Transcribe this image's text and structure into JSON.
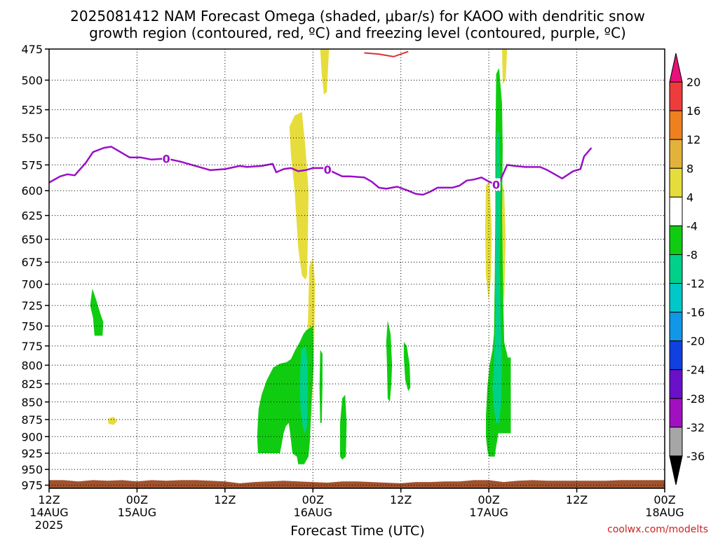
{
  "title_line1": "2025081412 NAM Forecast Omega (shaded, μbar/s) for KAOO with dendritic snow",
  "title_line2": "growth region (contoured, red, ºC) and freezing level (contoured, purple, ºC)",
  "credit": "coolwx.com/modelts",
  "chart_data": {
    "type": "heatmap",
    "xlabel": "Forecast Time (UTC)",
    "ylabel": "",
    "x_ticks": [
      {
        "hour": 0,
        "line1": "12Z",
        "line2": "14AUG",
        "line3": "2025"
      },
      {
        "hour": 12,
        "line1": "00Z",
        "line2": "15AUG",
        "line3": ""
      },
      {
        "hour": 24,
        "line1": "12Z",
        "line2": "",
        "line3": ""
      },
      {
        "hour": 36,
        "line1": "00Z",
        "line2": "16AUG",
        "line3": ""
      },
      {
        "hour": 48,
        "line1": "12Z",
        "line2": "",
        "line3": ""
      },
      {
        "hour": 60,
        "line1": "00Z",
        "line2": "17AUG",
        "line3": ""
      },
      {
        "hour": 72,
        "line1": "12Z",
        "line2": "",
        "line3": ""
      },
      {
        "hour": 84,
        "line1": "00Z",
        "line2": "18AUG",
        "line3": ""
      }
    ],
    "xlim": [
      0,
      84
    ],
    "y_ticks": [
      475,
      500,
      525,
      550,
      575,
      600,
      625,
      650,
      675,
      700,
      725,
      750,
      775,
      800,
      825,
      850,
      875,
      900,
      925,
      950,
      975
    ],
    "ylim": [
      475,
      980
    ],
    "y_scale": "log-pressure",
    "grid": true,
    "colorbar": {
      "levels": [
        "20",
        "16",
        "12",
        "8",
        "4",
        "-4",
        "-8",
        "-12",
        "-16",
        "-20",
        "-24",
        "-28",
        "-32",
        "-36"
      ],
      "colors": [
        "#e8107a",
        "#ee3b3b",
        "#ee8020",
        "#e3b23a",
        "#e6dd3c",
        "#ffffff",
        "#10cc10",
        "#00d08a",
        "#00c8c8",
        "#1097e8",
        "#1040e0",
        "#6a10c8",
        "#a010c0",
        "#a6a6a6",
        "#000000"
      ]
    },
    "freezing_level": {
      "label": "0",
      "color": "#9a10c8",
      "points": [
        [
          0,
          592
        ],
        [
          1.5,
          586
        ],
        [
          2.5,
          584
        ],
        [
          3.5,
          585
        ],
        [
          5,
          573
        ],
        [
          6,
          563
        ],
        [
          7.5,
          559
        ],
        [
          8.5,
          558
        ],
        [
          9.5,
          562
        ],
        [
          11,
          568
        ],
        [
          12.5,
          568
        ],
        [
          14,
          570
        ],
        [
          16,
          569
        ],
        [
          18,
          572
        ],
        [
          20,
          576
        ],
        [
          22,
          580
        ],
        [
          24,
          579
        ],
        [
          26,
          576
        ],
        [
          27,
          577
        ],
        [
          29,
          576
        ],
        [
          30.5,
          574
        ],
        [
          31,
          582
        ],
        [
          32,
          579
        ],
        [
          33,
          578
        ],
        [
          34,
          581
        ],
        [
          35,
          580
        ],
        [
          36,
          578
        ],
        [
          37.5,
          578
        ],
        [
          38.5,
          581
        ],
        [
          40,
          586
        ],
        [
          41,
          586
        ],
        [
          43,
          587
        ],
        [
          44,
          591
        ],
        [
          45,
          597
        ],
        [
          46,
          598
        ],
        [
          47.5,
          596
        ],
        [
          49,
          600
        ],
        [
          50,
          603
        ],
        [
          51,
          604
        ],
        [
          52,
          601
        ],
        [
          53,
          597
        ],
        [
          54,
          597
        ],
        [
          55,
          597
        ],
        [
          56,
          595
        ],
        [
          57,
          590
        ],
        [
          58,
          589
        ],
        [
          59,
          587
        ],
        [
          60,
          591
        ],
        [
          61,
          594
        ],
        [
          61.5,
          591
        ],
        [
          62.5,
          575
        ],
        [
          63.5,
          576
        ],
        [
          65,
          577
        ],
        [
          66,
          577
        ],
        [
          67,
          577
        ],
        [
          68,
          580
        ],
        [
          69,
          584
        ],
        [
          70,
          588
        ],
        [
          71.5,
          581
        ],
        [
          72.5,
          579
        ],
        [
          73,
          567
        ],
        [
          74,
          559
        ]
      ],
      "label_hours": [
        16,
        38,
        61
      ]
    },
    "dgz_contour": {
      "color": "#e03030",
      "points": [
        [
          43,
          478
        ],
        [
          45,
          479
        ],
        [
          47,
          481
        ],
        [
          49,
          477
        ]
      ]
    },
    "omega_regions": [
      {
        "value": 6,
        "color": "#e6dd3c",
        "points": [
          [
            37.0,
            475
          ],
          [
            38.2,
            475
          ],
          [
            37.9,
            510
          ],
          [
            37.5,
            512
          ],
          [
            37.2,
            495
          ]
        ]
      },
      {
        "value": 6,
        "color": "#e6dd3c",
        "points": [
          [
            33.5,
            530
          ],
          [
            34.5,
            527
          ],
          [
            35.0,
            560
          ],
          [
            35.4,
            600
          ],
          [
            35.3,
            650
          ],
          [
            35.2,
            690
          ],
          [
            35.0,
            695
          ],
          [
            34.5,
            690
          ],
          [
            34.0,
            660
          ],
          [
            33.5,
            600
          ],
          [
            33.0,
            565
          ],
          [
            32.8,
            540
          ]
        ]
      },
      {
        "value": 6,
        "color": "#e6dd3c",
        "points": [
          [
            35.5,
            680
          ],
          [
            36.0,
            670
          ],
          [
            36.3,
            700
          ],
          [
            36.2,
            760
          ],
          [
            36.0,
            820
          ],
          [
            35.8,
            870
          ],
          [
            35.5,
            870
          ],
          [
            35.4,
            820
          ],
          [
            35.3,
            750
          ]
        ]
      },
      {
        "value": 6,
        "color": "#e6dd3c",
        "points": [
          [
            61.8,
            475
          ],
          [
            62.5,
            475
          ],
          [
            62.3,
            500
          ],
          [
            61.9,
            503
          ]
        ]
      },
      {
        "value": 6,
        "color": "#e6dd3c",
        "points": [
          [
            59.6,
            595
          ],
          [
            60.1,
            590
          ],
          [
            60.4,
            640
          ],
          [
            60.3,
            690
          ],
          [
            60.0,
            720
          ],
          [
            59.6,
            690
          ],
          [
            59.5,
            640
          ]
        ]
      },
      {
        "value": 6,
        "color": "#e6dd3c",
        "points": [
          [
            61.7,
            590
          ],
          [
            62.1,
            600
          ],
          [
            62.3,
            650
          ],
          [
            62.1,
            720
          ],
          [
            61.8,
            700
          ],
          [
            61.6,
            650
          ]
        ]
      },
      {
        "value": 6,
        "color": "#e6dd3c",
        "points": [
          [
            8.0,
            874
          ],
          [
            8.8,
            871
          ],
          [
            9.3,
            877
          ],
          [
            8.8,
            883
          ],
          [
            8.1,
            881
          ]
        ]
      },
      {
        "value": -6,
        "color": "#10cc10",
        "points": [
          [
            5.9,
            705
          ],
          [
            6.5,
            720
          ],
          [
            7.0,
            735
          ],
          [
            7.4,
            745
          ],
          [
            7.3,
            762
          ],
          [
            6.2,
            762
          ],
          [
            6.0,
            740
          ],
          [
            5.6,
            725
          ]
        ]
      },
      {
        "value": -6,
        "color": "#10cc10",
        "points": [
          [
            35.1,
            755
          ],
          [
            36.0,
            750
          ],
          [
            36.1,
            800
          ],
          [
            35.8,
            850
          ],
          [
            35.6,
            905
          ],
          [
            35.4,
            930
          ],
          [
            34.8,
            942
          ],
          [
            34.0,
            942
          ],
          [
            33.8,
            930
          ],
          [
            33.2,
            925
          ],
          [
            32.9,
            895
          ],
          [
            32.7,
            880
          ],
          [
            32.3,
            885
          ],
          [
            32.0,
            895
          ],
          [
            31.5,
            925
          ],
          [
            30.0,
            925
          ],
          [
            28.5,
            925
          ],
          [
            28.4,
            900
          ],
          [
            28.5,
            875
          ],
          [
            28.6,
            860
          ],
          [
            29.0,
            840
          ],
          [
            29.7,
            820
          ],
          [
            30.6,
            803
          ],
          [
            31.5,
            798
          ],
          [
            32.4,
            796
          ],
          [
            33.0,
            792
          ],
          [
            33.6,
            780
          ],
          [
            34.2,
            770
          ],
          [
            34.7,
            760
          ]
        ]
      },
      {
        "value": -6,
        "color": "#10cc10",
        "points": [
          [
            37.0,
            780
          ],
          [
            37.3,
            785
          ],
          [
            37.3,
            830
          ],
          [
            37.2,
            880
          ],
          [
            37.0,
            880
          ],
          [
            36.9,
            830
          ]
        ]
      },
      {
        "value": -6,
        "color": "#10cc10",
        "points": [
          [
            40.0,
            845
          ],
          [
            40.4,
            840
          ],
          [
            40.6,
            880
          ],
          [
            40.5,
            930
          ],
          [
            40.0,
            935
          ],
          [
            39.7,
            930
          ],
          [
            39.7,
            880
          ]
        ]
      },
      {
        "value": -6,
        "color": "#10cc10",
        "points": [
          [
            46.2,
            743
          ],
          [
            46.6,
            760
          ],
          [
            46.8,
            800
          ],
          [
            46.7,
            825
          ],
          [
            46.5,
            850
          ],
          [
            46.2,
            845
          ],
          [
            46.1,
            800
          ],
          [
            46.0,
            770
          ]
        ]
      },
      {
        "value": -6,
        "color": "#10cc10",
        "points": [
          [
            48.4,
            770
          ],
          [
            48.8,
            775
          ],
          [
            49.2,
            800
          ],
          [
            49.3,
            830
          ],
          [
            49.0,
            835
          ],
          [
            48.6,
            820
          ],
          [
            48.4,
            790
          ]
        ]
      },
      {
        "value": -6,
        "color": "#10cc10",
        "points": [
          [
            61.0,
            495
          ],
          [
            61.4,
            490
          ],
          [
            61.8,
            520
          ],
          [
            61.9,
            560
          ],
          [
            61.8,
            620
          ],
          [
            61.9,
            680
          ],
          [
            62.0,
            730
          ],
          [
            62.1,
            770
          ],
          [
            62.6,
            790
          ],
          [
            63.0,
            790
          ],
          [
            63.0,
            850
          ],
          [
            63.0,
            895
          ],
          [
            62.0,
            895
          ],
          [
            61.3,
            895
          ],
          [
            61.0,
            915
          ],
          [
            60.8,
            930
          ],
          [
            60.0,
            930
          ],
          [
            59.8,
            920
          ],
          [
            59.6,
            900
          ],
          [
            59.6,
            870
          ],
          [
            59.8,
            830
          ],
          [
            60.1,
            800
          ],
          [
            60.5,
            780
          ],
          [
            60.7,
            760
          ],
          [
            60.8,
            700
          ],
          [
            60.9,
            620
          ],
          [
            60.9,
            560
          ]
        ]
      },
      {
        "value": -10,
        "color": "#00d08a",
        "points": [
          [
            34.4,
            780
          ],
          [
            35.0,
            775
          ],
          [
            35.3,
            800
          ],
          [
            35.3,
            840
          ],
          [
            35.2,
            885
          ],
          [
            34.9,
            895
          ],
          [
            34.6,
            885
          ],
          [
            34.3,
            860
          ],
          [
            34.2,
            825
          ],
          [
            34.3,
            800
          ]
        ]
      },
      {
        "value": -10,
        "color": "#00d08a",
        "points": [
          [
            61.1,
            545
          ],
          [
            61.4,
            545
          ],
          [
            61.6,
            600
          ],
          [
            61.5,
            680
          ],
          [
            61.6,
            740
          ],
          [
            61.8,
            800
          ],
          [
            61.7,
            850
          ],
          [
            61.4,
            880
          ],
          [
            61.0,
            880
          ],
          [
            60.7,
            860
          ],
          [
            60.5,
            830
          ],
          [
            60.7,
            800
          ],
          [
            60.9,
            740
          ],
          [
            60.9,
            680
          ],
          [
            61.0,
            600
          ]
        ]
      }
    ],
    "terrain": {
      "color": "#a0522d",
      "points": [
        [
          0,
          967
        ],
        [
          2,
          967
        ],
        [
          4,
          969
        ],
        [
          6,
          967
        ],
        [
          8,
          968
        ],
        [
          10,
          967
        ],
        [
          12,
          969
        ],
        [
          14,
          967
        ],
        [
          16,
          968
        ],
        [
          18,
          967
        ],
        [
          20,
          967
        ],
        [
          22,
          968
        ],
        [
          24,
          969
        ],
        [
          26,
          972
        ],
        [
          28,
          970
        ],
        [
          30,
          969
        ],
        [
          32,
          968
        ],
        [
          34,
          969
        ],
        [
          36,
          970
        ],
        [
          38,
          971
        ],
        [
          40,
          969
        ],
        [
          42,
          969
        ],
        [
          44,
          970
        ],
        [
          46,
          971
        ],
        [
          48,
          972
        ],
        [
          50,
          970
        ],
        [
          52,
          970
        ],
        [
          54,
          969
        ],
        [
          56,
          969
        ],
        [
          58,
          967
        ],
        [
          60,
          967
        ],
        [
          62,
          970
        ],
        [
          64,
          968
        ],
        [
          66,
          967
        ],
        [
          68,
          968
        ],
        [
          70,
          968
        ],
        [
          72,
          968
        ],
        [
          74,
          968
        ],
        [
          76,
          968
        ],
        [
          78,
          967
        ],
        [
          80,
          967
        ],
        [
          82,
          967
        ],
        [
          84,
          967
        ]
      ]
    }
  }
}
